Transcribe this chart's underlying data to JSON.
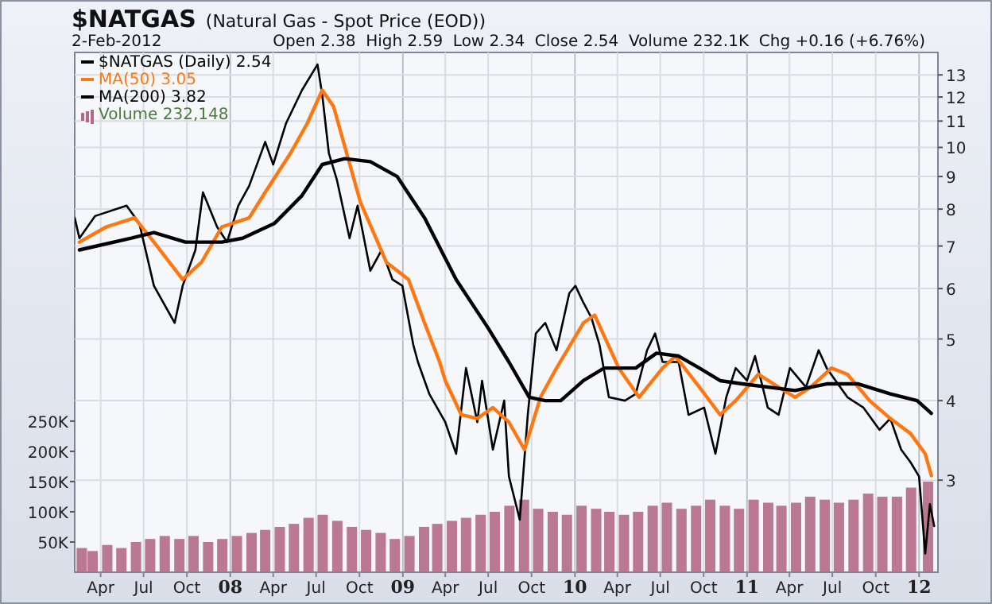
{
  "chart_data": {
    "type": "line",
    "title": "$NATGAS",
    "subtitle": "(Natural Gas - Spot Price (EOD))",
    "annotations": [
      "2-Feb-2012",
      "Open 2.38  High 2.59  Low 2.34  Close 2.54  Volume 232.1K  Chg +0.16 (+6.76%)"
    ],
    "xlim": [
      "2007-02-05",
      "2012-02-10"
    ],
    "xticks": [
      {
        "value": "2007-04-01",
        "label": "Apr"
      },
      {
        "value": "2007-07-01",
        "label": "Jul"
      },
      {
        "value": "2007-10-01",
        "label": "Oct"
      },
      {
        "value": "2008-01-01",
        "label": "08"
      },
      {
        "value": "2008-04-01",
        "label": "Apr"
      },
      {
        "value": "2008-07-01",
        "label": "Jul"
      },
      {
        "value": "2008-10-01",
        "label": "Oct"
      },
      {
        "value": "2009-01-01",
        "label": "09"
      },
      {
        "value": "2009-04-01",
        "label": "Apr"
      },
      {
        "value": "2009-07-01",
        "label": "Jul"
      },
      {
        "value": "2009-10-01",
        "label": "Oct"
      },
      {
        "value": "2010-01-01",
        "label": "10"
      },
      {
        "value": "2010-04-01",
        "label": "Apr"
      },
      {
        "value": "2010-07-01",
        "label": "Jul"
      },
      {
        "value": "2010-10-01",
        "label": "Oct"
      },
      {
        "value": "2011-01-01",
        "label": "11"
      },
      {
        "value": "2011-04-01",
        "label": "Apr"
      },
      {
        "value": "2011-07-01",
        "label": "Jul"
      },
      {
        "value": "2011-10-01",
        "label": "Oct"
      },
      {
        "value": "2012-01-01",
        "label": "12"
      }
    ],
    "ylim": [
      2.15,
      14.1
    ],
    "yticks": [
      3,
      4,
      5,
      6,
      7,
      8,
      9,
      10,
      11,
      12,
      13
    ],
    "log": "y",
    "grid": true,
    "legend": "top left",
    "y2lim": [
      0,
      860000
    ],
    "y2ticks": [
      {
        "value": 50000,
        "label": "50K"
      },
      {
        "value": 100000,
        "label": "100K"
      },
      {
        "value": 150000,
        "label": "150K"
      },
      {
        "value": 200000,
        "label": "200K"
      },
      {
        "value": 250000,
        "label": "250K"
      }
    ],
    "series": [
      {
        "name": "Volume 232,148",
        "type": "bar",
        "axis": "y2",
        "color": "#b46a85",
        "x": [
          "2007-02-20",
          "2007-03-15",
          "2007-04-15",
          "2007-05-15",
          "2007-06-15",
          "2007-07-15",
          "2007-08-15",
          "2007-09-15",
          "2007-10-15",
          "2007-11-15",
          "2007-12-15",
          "2008-01-15",
          "2008-02-15",
          "2008-03-15",
          "2008-04-15",
          "2008-05-15",
          "2008-06-15",
          "2008-07-15",
          "2008-08-15",
          "2008-09-15",
          "2008-10-15",
          "2008-11-15",
          "2008-12-15",
          "2009-01-15",
          "2009-02-15",
          "2009-03-15",
          "2009-04-15",
          "2009-05-15",
          "2009-06-15",
          "2009-07-15",
          "2009-08-15",
          "2009-09-15",
          "2009-10-15",
          "2009-11-15",
          "2009-12-15",
          "2010-01-15",
          "2010-02-15",
          "2010-03-15",
          "2010-04-15",
          "2010-05-15",
          "2010-06-15",
          "2010-07-15",
          "2010-08-15",
          "2010-09-15",
          "2010-10-15",
          "2010-11-15",
          "2010-12-15",
          "2011-01-15",
          "2011-02-15",
          "2011-03-15",
          "2011-04-15",
          "2011-05-15",
          "2011-06-15",
          "2011-07-15",
          "2011-08-15",
          "2011-09-15",
          "2011-10-15",
          "2011-11-15",
          "2011-12-15",
          "2012-01-20"
        ],
        "values": [
          40000,
          35000,
          45000,
          40000,
          50000,
          55000,
          60000,
          55000,
          60000,
          50000,
          55000,
          60000,
          65000,
          70000,
          75000,
          80000,
          90000,
          95000,
          85000,
          75000,
          70000,
          65000,
          55000,
          60000,
          75000,
          80000,
          85000,
          90000,
          95000,
          100000,
          110000,
          120000,
          105000,
          100000,
          95000,
          110000,
          105000,
          100000,
          95000,
          100000,
          110000,
          115000,
          105000,
          110000,
          120000,
          110000,
          105000,
          120000,
          115000,
          110000,
          115000,
          125000,
          120000,
          115000,
          120000,
          130000,
          125000,
          125000,
          140000,
          150000
        ]
      },
      {
        "name": "$NATGAS (Daily) 2.54",
        "color": "#000000",
        "x": [
          "2007-02-05",
          "2007-02-15",
          "2007-03-20",
          "2007-05-26",
          "2007-06-22",
          "2007-07-23",
          "2007-09-05",
          "2007-09-22",
          "2007-10-19",
          "2007-11-04",
          "2007-12-04",
          "2007-12-25",
          "2008-01-18",
          "2008-02-10",
          "2008-03-15",
          "2008-04-01",
          "2008-04-28",
          "2008-06-01",
          "2008-07-04",
          "2008-07-14",
          "2008-07-28",
          "2008-08-14",
          "2008-09-10",
          "2008-09-27",
          "2008-10-24",
          "2008-11-17",
          "2008-12-10",
          "2008-12-31",
          "2009-01-23",
          "2009-02-02",
          "2009-02-26",
          "2009-04-01",
          "2009-04-24",
          "2009-05-15",
          "2009-06-08",
          "2009-06-18",
          "2009-07-11",
          "2009-08-04",
          "2009-08-14",
          "2009-09-06",
          "2009-09-23",
          "2009-10-10",
          "2009-10-30",
          "2009-11-23",
          "2009-12-20",
          "2010-01-02",
          "2010-01-19",
          "2010-02-05",
          "2010-02-22",
          "2010-03-14",
          "2010-04-17",
          "2010-05-10",
          "2010-06-03",
          "2010-06-20",
          "2010-07-06",
          "2010-08-09",
          "2010-08-30",
          "2010-10-02",
          "2010-10-26",
          "2010-11-18",
          "2010-12-08",
          "2011-01-01",
          "2011-01-18",
          "2011-02-14",
          "2011-03-09",
          "2011-04-02",
          "2011-05-06",
          "2011-06-02",
          "2011-06-19",
          "2011-08-02",
          "2011-09-05",
          "2011-10-09",
          "2011-11-01",
          "2011-11-24",
          "2011-12-14",
          "2012-01-01",
          "2012-01-14",
          "2012-01-24",
          "2012-02-02"
        ],
        "values": [
          7.75,
          7.2,
          7.8,
          8.1,
          7.6,
          6.06,
          5.3,
          6.06,
          6.9,
          8.5,
          7.5,
          7.1,
          8.1,
          8.7,
          10.2,
          9.4,
          10.9,
          12.3,
          13.5,
          12.1,
          9.8,
          8.9,
          7.2,
          8.1,
          6.4,
          6.9,
          6.2,
          6.06,
          4.9,
          4.6,
          4.1,
          3.7,
          3.3,
          4.5,
          3.7,
          4.3,
          3.35,
          4.0,
          3.04,
          2.6,
          3.8,
          5.1,
          5.3,
          4.8,
          5.9,
          6.06,
          5.7,
          5.4,
          4.9,
          4.05,
          4.0,
          4.1,
          4.8,
          5.1,
          4.6,
          4.6,
          3.8,
          3.9,
          3.3,
          4.05,
          4.5,
          4.3,
          4.7,
          3.9,
          3.8,
          4.5,
          4.2,
          4.8,
          4.5,
          4.05,
          3.9,
          3.6,
          3.75,
          3.35,
          3.2,
          3.04,
          2.3,
          2.75,
          2.54
        ]
      },
      {
        "name": "MA(50) 3.05",
        "color": "#ff7711",
        "x": [
          "2007-02-15",
          "2007-04-13",
          "2007-06-12",
          "2007-07-23",
          "2007-09-22",
          "2007-11-01",
          "2007-12-14",
          "2008-02-10",
          "2008-03-15",
          "2008-05-08",
          "2008-06-12",
          "2008-07-14",
          "2008-08-07",
          "2008-10-03",
          "2008-11-27",
          "2009-01-13",
          "2009-02-16",
          "2009-03-20",
          "2009-04-01",
          "2009-05-05",
          "2009-06-08",
          "2009-07-11",
          "2009-08-14",
          "2009-09-16",
          "2009-10-20",
          "2009-11-23",
          "2010-01-19",
          "2010-02-12",
          "2010-04-04",
          "2010-05-17",
          "2010-07-06",
          "2010-08-02",
          "2010-09-22",
          "2010-11-05",
          "2010-12-08",
          "2011-01-25",
          "2011-03-09",
          "2011-04-13",
          "2011-05-16",
          "2011-06-29",
          "2011-08-02",
          "2011-09-18",
          "2011-11-01",
          "2011-12-14",
          "2012-01-14",
          "2012-01-27"
        ],
        "values": [
          7.1,
          7.5,
          7.75,
          7.1,
          6.2,
          6.6,
          7.5,
          7.75,
          8.5,
          9.8,
          10.9,
          12.3,
          11.6,
          8.2,
          6.6,
          6.2,
          5.3,
          4.6,
          4.3,
          3.8,
          3.75,
          3.9,
          3.7,
          3.35,
          4.05,
          4.5,
          5.3,
          5.45,
          4.5,
          4.05,
          4.5,
          4.7,
          4.2,
          3.8,
          4.0,
          4.4,
          4.2,
          4.05,
          4.2,
          4.5,
          4.4,
          4.0,
          3.75,
          3.55,
          3.3,
          3.05
        ]
      },
      {
        "name": "MA(200) 3.82",
        "color": "#000000",
        "x": [
          "2007-02-15",
          "2007-06-05",
          "2007-07-23",
          "2007-09-28",
          "2007-12-14",
          "2008-01-27",
          "2008-04-04",
          "2008-06-01",
          "2008-07-14",
          "2008-08-31",
          "2008-10-24",
          "2008-12-20",
          "2009-02-16",
          "2009-04-24",
          "2009-07-01",
          "2009-08-14",
          "2009-09-26",
          "2009-10-30",
          "2009-12-02",
          "2010-01-19",
          "2010-03-04",
          "2010-05-10",
          "2010-06-23",
          "2010-08-09",
          "2010-09-22",
          "2010-11-05",
          "2010-12-22",
          "2011-04-13",
          "2011-06-19",
          "2011-08-25",
          "2011-11-01",
          "2011-12-28",
          "2012-01-27"
        ],
        "values": [
          6.9,
          7.2,
          7.35,
          7.1,
          7.1,
          7.2,
          7.6,
          8.4,
          9.4,
          9.6,
          9.5,
          9.0,
          7.75,
          6.2,
          5.2,
          4.6,
          4.05,
          4.0,
          4.0,
          4.3,
          4.5,
          4.5,
          4.75,
          4.7,
          4.5,
          4.3,
          4.25,
          4.15,
          4.25,
          4.25,
          4.1,
          4.0,
          3.82
        ]
      }
    ]
  }
}
